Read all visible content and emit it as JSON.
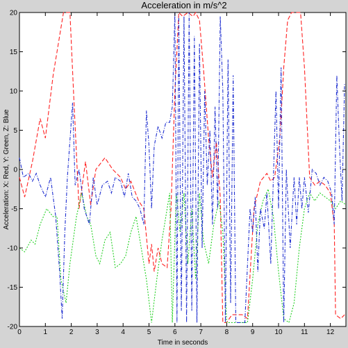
{
  "chart_data": {
    "type": "line",
    "title": "Acceleration in m/s^2",
    "xlabel": "Time in seconds",
    "ylabel": "Acceleration: X: Red, Y: Green, Z: Blue",
    "xlim": [
      0,
      12.6
    ],
    "ylim": [
      -20,
      20
    ],
    "xticks": [
      0,
      1,
      2,
      3,
      4,
      5,
      6,
      7,
      8,
      9,
      10,
      11,
      12
    ],
    "yticks": [
      -20,
      -15,
      -10,
      -5,
      0,
      5,
      10,
      15,
      20
    ],
    "grid": false,
    "series": [
      {
        "name": "X",
        "color": "#ff2020",
        "dash": "6,3",
        "points": [
          [
            0,
            -1
          ],
          [
            0.2,
            -3.5
          ],
          [
            0.5,
            1
          ],
          [
            0.8,
            6.5
          ],
          [
            1.0,
            4
          ],
          [
            1.3,
            12
          ],
          [
            1.55,
            17
          ],
          [
            1.7,
            20
          ],
          [
            1.95,
            20
          ],
          [
            2.1,
            9
          ],
          [
            2.3,
            -5
          ],
          [
            2.55,
            1
          ],
          [
            2.75,
            -4.5
          ],
          [
            2.95,
            0
          ],
          [
            3.3,
            1.5
          ],
          [
            3.6,
            0
          ],
          [
            3.9,
            -1
          ],
          [
            4.1,
            -2.5
          ],
          [
            4.3,
            -1.5
          ],
          [
            4.6,
            -4
          ],
          [
            4.8,
            -5
          ],
          [
            5.0,
            -12
          ],
          [
            5.1,
            -9.5
          ],
          [
            5.2,
            -13
          ],
          [
            5.35,
            -10
          ],
          [
            5.5,
            -12
          ],
          [
            5.7,
            -12.5
          ],
          [
            5.85,
            -5
          ],
          [
            6.0,
            10
          ],
          [
            6.15,
            20
          ],
          [
            6.3,
            19.5
          ],
          [
            6.5,
            20
          ],
          [
            6.7,
            19.5
          ],
          [
            6.8,
            20
          ],
          [
            6.95,
            19
          ],
          [
            7.1,
            13
          ],
          [
            7.3,
            4
          ],
          [
            7.45,
            -1
          ],
          [
            7.6,
            3.5
          ],
          [
            7.75,
            -3.5
          ],
          [
            7.85,
            -19.5
          ],
          [
            8.0,
            -19.5
          ],
          [
            8.2,
            -18.5
          ],
          [
            8.6,
            -18.5
          ],
          [
            8.8,
            -19
          ],
          [
            9.05,
            -5
          ],
          [
            9.3,
            -1.5
          ],
          [
            9.55,
            -0.5
          ],
          [
            9.7,
            -1.5
          ],
          [
            9.85,
            -1
          ],
          [
            10.05,
            4
          ],
          [
            10.2,
            13
          ],
          [
            10.35,
            19
          ],
          [
            10.5,
            20
          ],
          [
            10.85,
            20
          ],
          [
            11.0,
            13
          ],
          [
            11.2,
            -1
          ],
          [
            11.4,
            -2
          ],
          [
            11.6,
            -1.5
          ],
          [
            11.8,
            -2
          ],
          [
            12.0,
            -3
          ],
          [
            12.15,
            -7
          ],
          [
            12.2,
            -18.5
          ],
          [
            12.4,
            -19
          ],
          [
            12.55,
            -18.5
          ]
        ]
      },
      {
        "name": "Y",
        "color": "#22d022",
        "dash": "2,2",
        "points": [
          [
            0,
            -10
          ],
          [
            0.2,
            -10.5
          ],
          [
            0.45,
            -9
          ],
          [
            0.6,
            -9.5
          ],
          [
            0.8,
            -7
          ],
          [
            1.05,
            -5
          ],
          [
            1.3,
            -6
          ],
          [
            1.45,
            -6
          ],
          [
            1.6,
            -14
          ],
          [
            1.8,
            -17
          ],
          [
            1.95,
            -12
          ],
          [
            2.2,
            -6
          ],
          [
            2.4,
            -3
          ],
          [
            2.6,
            -6
          ],
          [
            2.75,
            -7
          ],
          [
            2.95,
            -11
          ],
          [
            3.1,
            -12
          ],
          [
            3.3,
            -9
          ],
          [
            3.5,
            -8
          ],
          [
            3.7,
            -12.5
          ],
          [
            3.9,
            -12
          ],
          [
            4.1,
            -11
          ],
          [
            4.3,
            -8
          ],
          [
            4.5,
            -6
          ],
          [
            4.7,
            -10
          ],
          [
            4.9,
            -14
          ],
          [
            5.1,
            -19.5
          ],
          [
            5.3,
            -14
          ],
          [
            5.5,
            -9
          ],
          [
            5.7,
            -5
          ],
          [
            5.8,
            -3
          ],
          [
            5.9,
            -19.5
          ],
          [
            6.05,
            -3
          ],
          [
            6.2,
            -8
          ],
          [
            6.35,
            -3
          ],
          [
            6.5,
            -12
          ],
          [
            6.65,
            -5
          ],
          [
            6.8,
            -14
          ],
          [
            6.95,
            -3
          ],
          [
            7.1,
            -9
          ],
          [
            7.3,
            -12
          ],
          [
            7.5,
            -7
          ],
          [
            7.7,
            -4
          ],
          [
            7.85,
            -8
          ],
          [
            8.0,
            -19.5
          ],
          [
            8.2,
            -19.5
          ],
          [
            8.5,
            -19.5
          ],
          [
            8.8,
            -19.5
          ],
          [
            9.0,
            -14
          ],
          [
            9.2,
            -7
          ],
          [
            9.4,
            -4
          ],
          [
            9.6,
            -2.5
          ],
          [
            9.8,
            -6
          ],
          [
            10.0,
            -13
          ],
          [
            10.2,
            -19
          ],
          [
            10.4,
            -19.5
          ],
          [
            10.6,
            -17
          ],
          [
            10.8,
            -10
          ],
          [
            11.0,
            -5
          ],
          [
            11.2,
            -3
          ],
          [
            11.4,
            -4
          ],
          [
            11.6,
            -3
          ],
          [
            11.8,
            -3.5
          ],
          [
            12.0,
            -4
          ],
          [
            12.2,
            -5
          ],
          [
            12.4,
            -4
          ],
          [
            12.6,
            -4.5
          ]
        ]
      },
      {
        "name": "Z",
        "color": "#2030d0",
        "dash": "5,2,1,2",
        "points": [
          [
            0,
            1.5
          ],
          [
            0.15,
            -1
          ],
          [
            0.35,
            -0.5
          ],
          [
            0.5,
            -1.5
          ],
          [
            0.65,
            -0.5
          ],
          [
            0.8,
            -2
          ],
          [
            1.0,
            -3.5
          ],
          [
            1.2,
            -1
          ],
          [
            1.4,
            -6
          ],
          [
            1.55,
            -13
          ],
          [
            1.65,
            -19
          ],
          [
            1.75,
            -8
          ],
          [
            1.85,
            -1
          ],
          [
            2.05,
            8.5
          ],
          [
            2.15,
            -2
          ],
          [
            2.3,
            0
          ],
          [
            2.5,
            -5
          ],
          [
            2.7,
            -7
          ],
          [
            2.85,
            -1
          ],
          [
            3.0,
            -4.5
          ],
          [
            3.2,
            -2
          ],
          [
            3.4,
            -1.5
          ],
          [
            3.55,
            -3
          ],
          [
            3.7,
            -1
          ],
          [
            3.9,
            -1.5
          ],
          [
            4.05,
            -3.5
          ],
          [
            4.2,
            -0.5
          ],
          [
            4.35,
            -3.5
          ],
          [
            4.5,
            -4
          ],
          [
            4.65,
            -5
          ],
          [
            4.8,
            -7
          ],
          [
            4.9,
            7.5
          ],
          [
            5.0,
            3
          ],
          [
            5.1,
            -5
          ],
          [
            5.2,
            3
          ],
          [
            5.35,
            5.5
          ],
          [
            5.5,
            4
          ],
          [
            5.65,
            6
          ],
          [
            5.8,
            6
          ],
          [
            5.9,
            8
          ],
          [
            6.0,
            20
          ],
          [
            6.08,
            -19.5
          ],
          [
            6.15,
            19.5
          ],
          [
            6.25,
            -18
          ],
          [
            6.35,
            19.5
          ],
          [
            6.45,
            -19.5
          ],
          [
            6.55,
            20
          ],
          [
            6.65,
            -18
          ],
          [
            6.75,
            17
          ],
          [
            6.85,
            -19.5
          ],
          [
            6.95,
            16
          ],
          [
            7.05,
            -10
          ],
          [
            7.15,
            10
          ],
          [
            7.25,
            -2
          ],
          [
            7.35,
            5
          ],
          [
            7.45,
            -7
          ],
          [
            7.55,
            8
          ],
          [
            7.65,
            -5
          ],
          [
            7.75,
            19.5
          ],
          [
            7.85,
            10
          ],
          [
            7.95,
            -19.5
          ],
          [
            8.05,
            14
          ],
          [
            8.15,
            -17
          ],
          [
            8.25,
            12
          ],
          [
            8.35,
            -19.5
          ],
          [
            8.5,
            -19.5
          ],
          [
            8.7,
            -19.5
          ],
          [
            8.9,
            -5
          ],
          [
            9.0,
            -8
          ],
          [
            9.1,
            -3.5
          ],
          [
            9.2,
            -13
          ],
          [
            9.3,
            -5
          ],
          [
            9.45,
            -7.5
          ],
          [
            9.55,
            -3
          ],
          [
            9.7,
            -12
          ],
          [
            9.8,
            -1
          ],
          [
            9.9,
            10
          ],
          [
            10.0,
            -5
          ],
          [
            10.1,
            13
          ],
          [
            10.2,
            -19.5
          ],
          [
            10.3,
            0
          ],
          [
            10.45,
            -10
          ],
          [
            10.6,
            -1
          ],
          [
            10.7,
            -7
          ],
          [
            10.8,
            -1
          ],
          [
            10.9,
            -5
          ],
          [
            11.0,
            -1
          ],
          [
            11.15,
            -5.5
          ],
          [
            11.3,
            0
          ],
          [
            11.45,
            -0.5
          ],
          [
            11.6,
            -2
          ],
          [
            11.75,
            -1
          ],
          [
            11.9,
            -1.5
          ],
          [
            12.05,
            -3
          ],
          [
            12.15,
            -7
          ],
          [
            12.25,
            12
          ],
          [
            12.35,
            3
          ],
          [
            12.45,
            -4
          ],
          [
            12.55,
            11
          ]
        ]
      }
    ]
  }
}
